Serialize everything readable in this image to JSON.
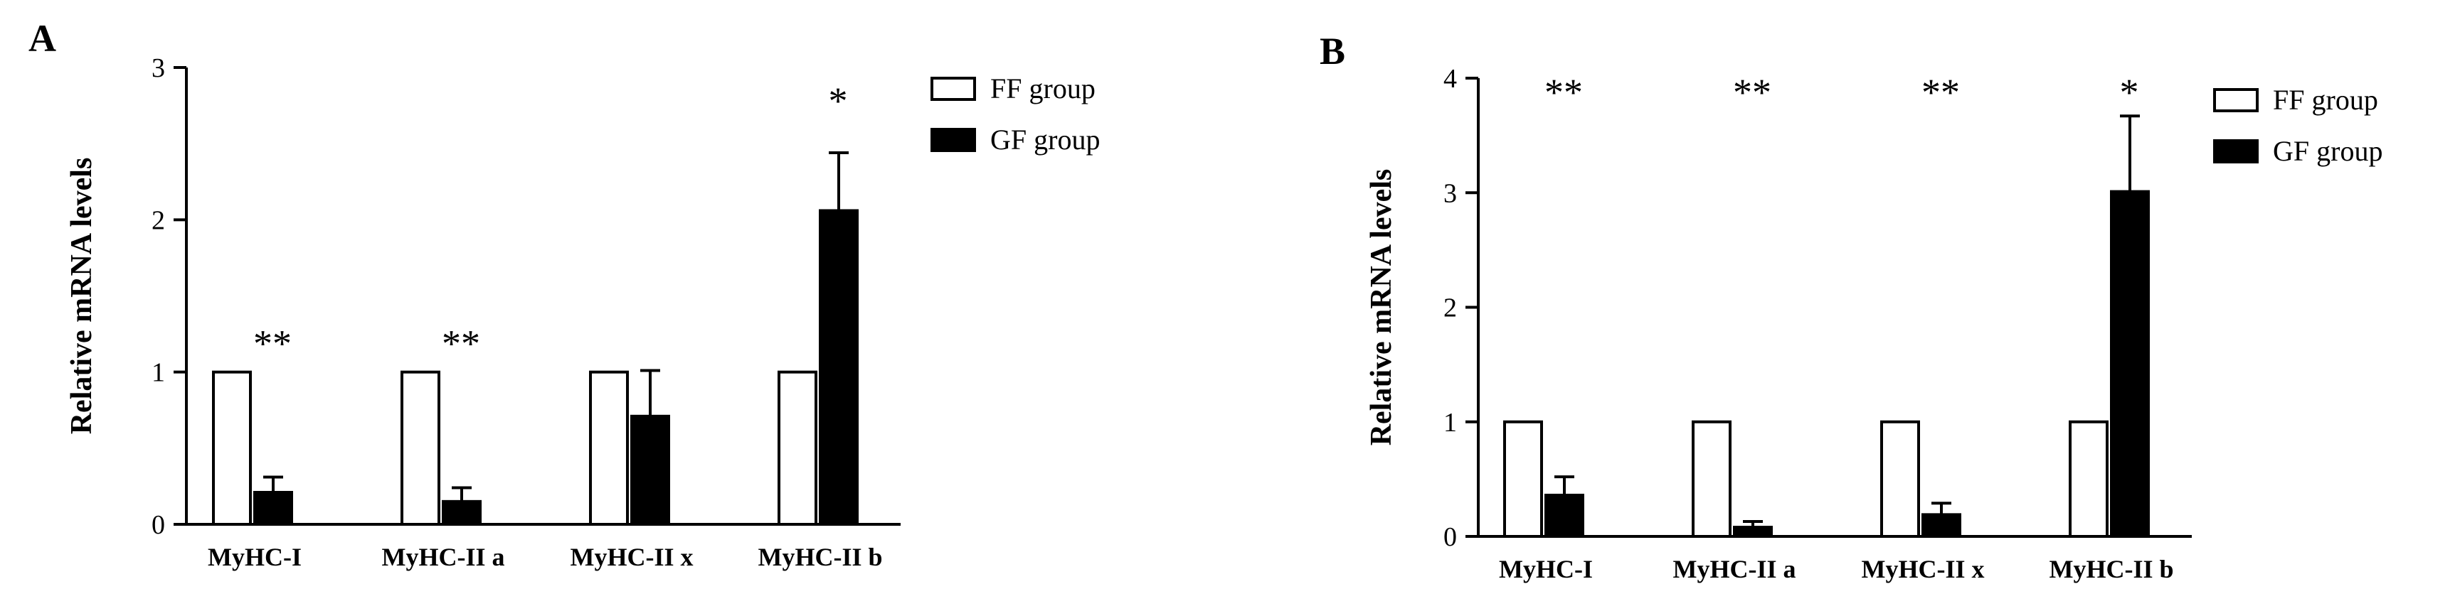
{
  "colors": {
    "ff": "#ffffff",
    "gf": "#000000",
    "stroke": "#000000"
  },
  "chart_data": [
    {
      "type": "bar",
      "panel": "A",
      "ylabel": "Relative mRNA  levels",
      "ylim": [
        0,
        3
      ],
      "yticks": [
        "0",
        "1",
        "2",
        "3"
      ],
      "categories": [
        "MyHC-I",
        "MyHC-II a",
        "MyHC-II x",
        "MyHC-II b"
      ],
      "series": [
        {
          "name": "FF group",
          "values": [
            1,
            1,
            1,
            1
          ],
          "errors": [
            0,
            0,
            0,
            0
          ]
        },
        {
          "name": "GF group",
          "values": [
            0.21,
            0.15,
            0.71,
            2.06
          ],
          "errors": [
            0.1,
            0.09,
            0.3,
            0.38
          ]
        }
      ],
      "significance": [
        "**",
        "**",
        "",
        "*"
      ],
      "legend": "top-right",
      "grid": false
    },
    {
      "type": "bar",
      "panel": "B",
      "ylabel": "Relative mRNA levels",
      "ylim": [
        0,
        4
      ],
      "yticks": [
        "0",
        "1",
        "2",
        "3",
        "4"
      ],
      "categories": [
        "MyHC-I",
        "MyHC-II a",
        "MyHC-II x",
        "MyHC-II b"
      ],
      "series": [
        {
          "name": "FF group",
          "values": [
            1,
            1,
            1,
            1
          ],
          "errors": [
            0,
            0,
            0,
            0
          ]
        },
        {
          "name": "GF group",
          "values": [
            0.36,
            0.08,
            0.19,
            3.01
          ],
          "errors": [
            0.16,
            0.05,
            0.1,
            0.66
          ]
        }
      ],
      "significance": [
        "**",
        "**",
        "**",
        "*"
      ],
      "legend": "top-right",
      "grid": false
    }
  ]
}
